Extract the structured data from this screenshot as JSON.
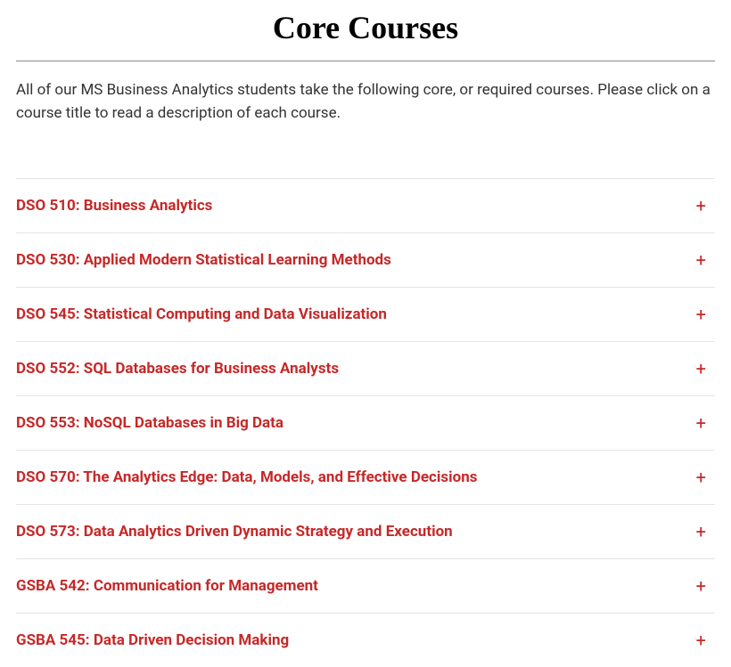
{
  "title": "Core Courses",
  "intro": "All of our MS Business Analytics students take the following core, or required courses. Please click on a course title to read a description of each course.",
  "colors": {
    "accent": "#c62828",
    "text": "#333333",
    "rule": "#8a8a8a",
    "divider": "#e5e5e5",
    "background": "#ffffff"
  },
  "courses": [
    {
      "label": "DSO 510: Business Analytics"
    },
    {
      "label": "DSO 530: Applied Modern Statistical Learning Methods"
    },
    {
      "label": "DSO 545: Statistical Computing and Data Visualization"
    },
    {
      "label": "DSO 552: SQL Databases for Business Analysts"
    },
    {
      "label": "DSO 553: NoSQL Databases in Big Data"
    },
    {
      "label": "DSO 570: The Analytics Edge: Data, Models, and Effective Decisions"
    },
    {
      "label": "DSO 573: Data Analytics Driven Dynamic Strategy and Execution"
    },
    {
      "label": "GSBA 542: Communication for Management"
    },
    {
      "label": "GSBA 545: Data Driven Decision Making"
    }
  ],
  "expand_glyph": "+"
}
